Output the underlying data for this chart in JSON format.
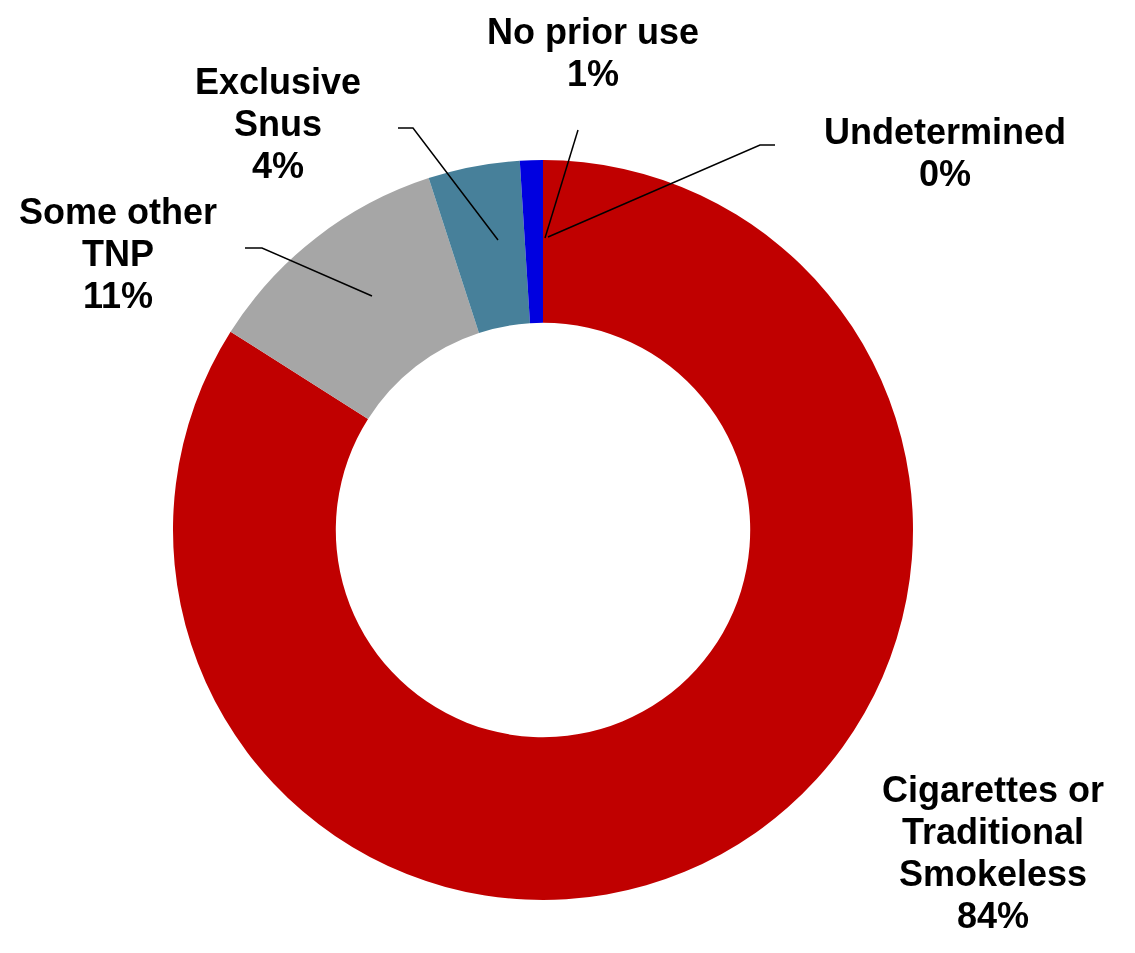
{
  "chart_data": {
    "type": "donut",
    "categories": [
      "Cigarettes or Traditional Smokeless",
      "Some other TNP",
      "Exclusive Snus",
      "No prior use",
      "Undetermined"
    ],
    "values": [
      84,
      11,
      4,
      1,
      0
    ],
    "colors": [
      "#c00000",
      "#a6a6a6",
      "#47809a",
      "#0000e0",
      "#e00000"
    ],
    "value_labels": [
      "84%",
      "11%",
      "4%",
      "1%",
      "0%"
    ],
    "legend": false
  }
}
